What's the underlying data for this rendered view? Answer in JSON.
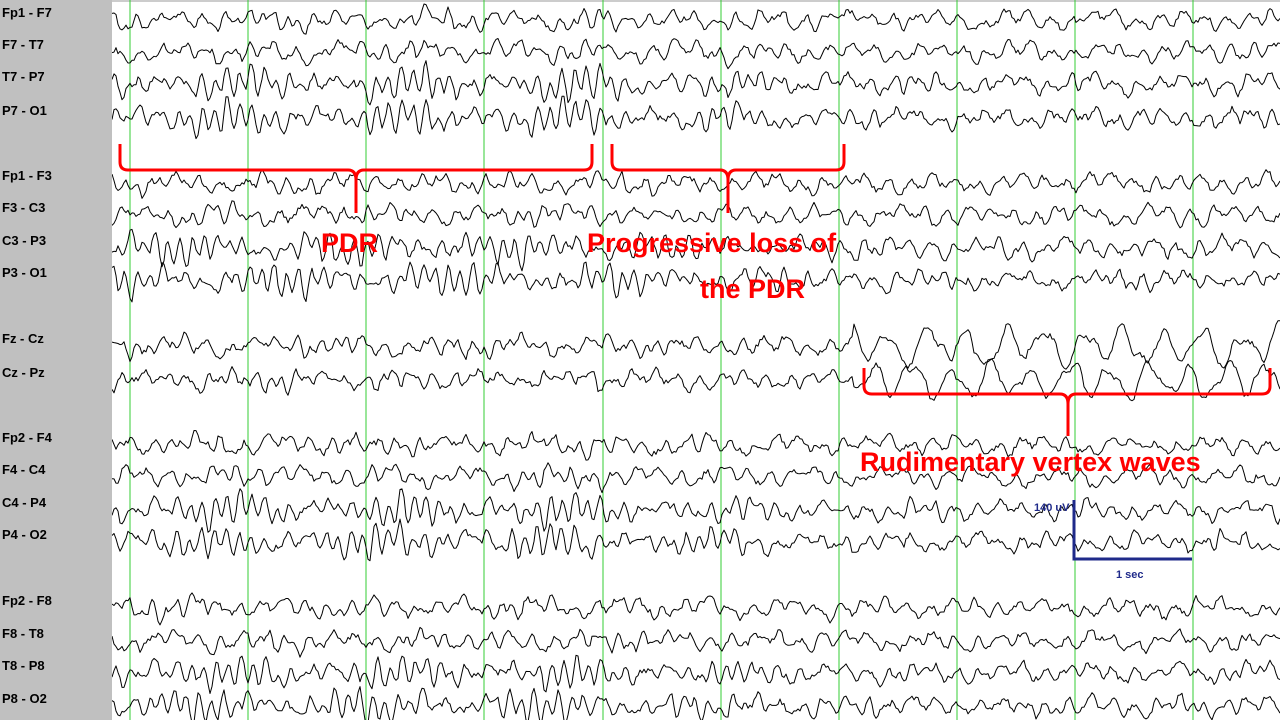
{
  "channels": [
    "Fp1 - F7",
    "F7 - T7",
    "T7 - P7",
    "P7 - O1",
    "Fp1 - F3",
    "F3 - C3",
    "C3 - P3",
    "P3 - O1",
    "Fz - Cz",
    "Cz - Pz",
    "Fp2 - F4",
    "F4 - C4",
    "C4 - P4",
    "P4 - O2",
    "Fp2 - F8",
    "F8 - T8",
    "T8 - P8",
    "P8 - O2"
  ],
  "annotations": {
    "pdr": "PDR",
    "progressive_1": "Progressive loss of",
    "progressive_2": "the PDR",
    "vertex": "Rudimentary vertex waves"
  },
  "calibration": {
    "amplitude": "140 uV",
    "time": "1 sec"
  },
  "colors": {
    "sidebar": "#c0c0c0",
    "trace": "#000000",
    "gridline": "#33cc33",
    "annotation": "#ff0000",
    "calibration": "#1f2a8a"
  }
}
